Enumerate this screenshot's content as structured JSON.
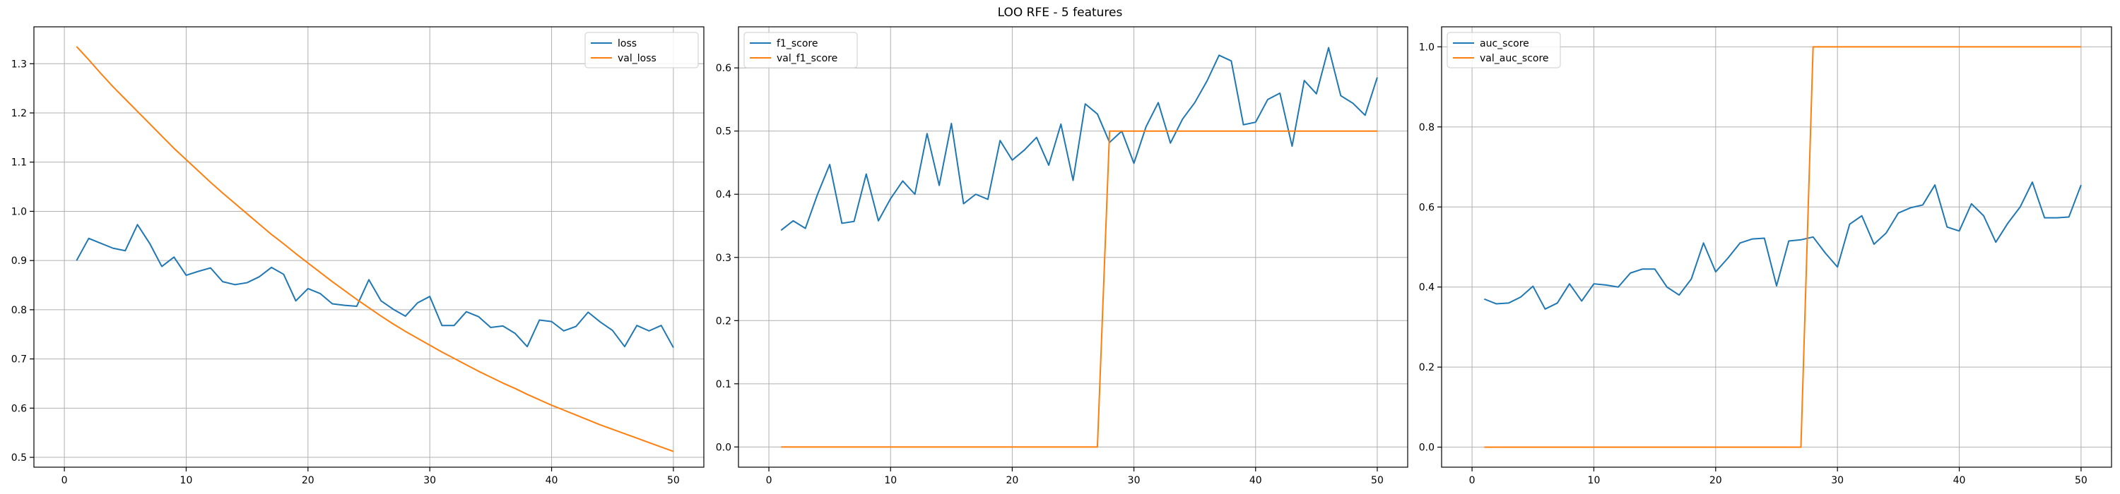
{
  "figure": {
    "title": "LOO RFE - 5 features"
  },
  "colors": {
    "blue": "#1f77b4",
    "orange": "#ff7f0e",
    "grid": "#b0b0b0",
    "axis": "#000000"
  },
  "chart_data": [
    {
      "type": "line",
      "title": "",
      "xlabel": "",
      "ylabel": "",
      "xlim": [
        -2.5,
        52.5
      ],
      "ylim": [
        0.48,
        1.375
      ],
      "xticks": [
        0,
        10,
        20,
        30,
        40,
        50
      ],
      "yticks": [
        0.5,
        0.6,
        0.7,
        0.8,
        0.9,
        1.0,
        1.1,
        1.2,
        1.3
      ],
      "ytick_labels": [
        "0.5",
        "0.6",
        "0.7",
        "0.8",
        "0.9",
        "1.0",
        "1.1",
        "1.2",
        "1.3"
      ],
      "grid": true,
      "legend_position": "top-right",
      "x": [
        1,
        2,
        3,
        4,
        5,
        6,
        7,
        8,
        9,
        10,
        11,
        12,
        13,
        14,
        15,
        16,
        17,
        18,
        19,
        20,
        21,
        22,
        23,
        24,
        25,
        26,
        27,
        28,
        29,
        30,
        31,
        32,
        33,
        34,
        35,
        36,
        37,
        38,
        39,
        40,
        41,
        42,
        43,
        44,
        45,
        46,
        47,
        48,
        49,
        50
      ],
      "series": [
        {
          "name": "loss",
          "color": "#1f77b4",
          "values": [
            0.9,
            0.945,
            0.935,
            0.925,
            0.92,
            0.973,
            0.935,
            0.888,
            0.907,
            0.87,
            0.878,
            0.885,
            0.857,
            0.851,
            0.855,
            0.867,
            0.886,
            0.872,
            0.818,
            0.843,
            0.833,
            0.812,
            0.809,
            0.807,
            0.861,
            0.818,
            0.801,
            0.787,
            0.814,
            0.827,
            0.768,
            0.768,
            0.796,
            0.786,
            0.764,
            0.767,
            0.752,
            0.725,
            0.779,
            0.776,
            0.757,
            0.766,
            0.795,
            0.775,
            0.758,
            0.725,
            0.768,
            0.757,
            0.768,
            0.723
          ]
        },
        {
          "name": "val_loss",
          "color": "#ff7f0e",
          "values": [
            1.335,
            1.308,
            1.28,
            1.253,
            1.228,
            1.203,
            1.178,
            1.153,
            1.128,
            1.105,
            1.082,
            1.059,
            1.037,
            1.016,
            0.995,
            0.974,
            0.953,
            0.934,
            0.914,
            0.895,
            0.876,
            0.857,
            0.839,
            0.821,
            0.804,
            0.787,
            0.771,
            0.756,
            0.742,
            0.728,
            0.714,
            0.701,
            0.688,
            0.675,
            0.663,
            0.651,
            0.64,
            0.628,
            0.617,
            0.606,
            0.596,
            0.586,
            0.576,
            0.566,
            0.557,
            0.548,
            0.539,
            0.53,
            0.521,
            0.512
          ]
        }
      ]
    },
    {
      "type": "line",
      "title": "",
      "xlabel": "",
      "ylabel": "",
      "xlim": [
        -2.5,
        52.5
      ],
      "ylim": [
        -0.032,
        0.665
      ],
      "xticks": [
        0,
        10,
        20,
        30,
        40,
        50
      ],
      "yticks": [
        0.0,
        0.1,
        0.2,
        0.3,
        0.4,
        0.5,
        0.6
      ],
      "ytick_labels": [
        "0.0",
        "0.1",
        "0.2",
        "0.3",
        "0.4",
        "0.5",
        "0.6"
      ],
      "grid": true,
      "legend_position": "top-left",
      "x": [
        1,
        2,
        3,
        4,
        5,
        6,
        7,
        8,
        9,
        10,
        11,
        12,
        13,
        14,
        15,
        16,
        17,
        18,
        19,
        20,
        21,
        22,
        23,
        24,
        25,
        26,
        27,
        28,
        29,
        30,
        31,
        32,
        33,
        34,
        35,
        36,
        37,
        38,
        39,
        40,
        41,
        42,
        43,
        44,
        45,
        46,
        47,
        48,
        49,
        50
      ],
      "series": [
        {
          "name": "f1_score",
          "color": "#1f77b4",
          "values": [
            0.343,
            0.358,
            0.346,
            0.4,
            0.447,
            0.354,
            0.357,
            0.432,
            0.358,
            0.393,
            0.421,
            0.4,
            0.496,
            0.414,
            0.512,
            0.385,
            0.4,
            0.392,
            0.485,
            0.454,
            0.47,
            0.49,
            0.446,
            0.511,
            0.422,
            0.543,
            0.527,
            0.482,
            0.5,
            0.449,
            0.507,
            0.545,
            0.481,
            0.519,
            0.545,
            0.579,
            0.62,
            0.611,
            0.51,
            0.514,
            0.55,
            0.56,
            0.476,
            0.58,
            0.559,
            0.632,
            0.556,
            0.544,
            0.525,
            0.585
          ]
        },
        {
          "name": "val_f1_score",
          "color": "#ff7f0e",
          "values": [
            0,
            0,
            0,
            0,
            0,
            0,
            0,
            0,
            0,
            0,
            0,
            0,
            0,
            0,
            0,
            0,
            0,
            0,
            0,
            0,
            0,
            0,
            0,
            0,
            0,
            0,
            0,
            0.5,
            0.5,
            0.5,
            0.5,
            0.5,
            0.5,
            0.5,
            0.5,
            0.5,
            0.5,
            0.5,
            0.5,
            0.5,
            0.5,
            0.5,
            0.5,
            0.5,
            0.5,
            0.5,
            0.5,
            0.5,
            0.5,
            0.5
          ]
        }
      ]
    },
    {
      "type": "line",
      "title": "",
      "xlabel": "",
      "ylabel": "",
      "xlim": [
        -2.5,
        52.5
      ],
      "ylim": [
        -0.05,
        1.05
      ],
      "xticks": [
        0,
        10,
        20,
        30,
        40,
        50
      ],
      "yticks": [
        0.0,
        0.2,
        0.4,
        0.6,
        0.8,
        1.0
      ],
      "ytick_labels": [
        "0.0",
        "0.2",
        "0.4",
        "0.6",
        "0.8",
        "1.0"
      ],
      "grid": true,
      "legend_position": "top-left",
      "x": [
        1,
        2,
        3,
        4,
        5,
        6,
        7,
        8,
        9,
        10,
        11,
        12,
        13,
        14,
        15,
        16,
        17,
        18,
        19,
        20,
        21,
        22,
        23,
        24,
        25,
        26,
        27,
        28,
        29,
        30,
        31,
        32,
        33,
        34,
        35,
        36,
        37,
        38,
        39,
        40,
        41,
        42,
        43,
        44,
        45,
        46,
        47,
        48,
        49,
        50
      ],
      "series": [
        {
          "name": "auc_score",
          "color": "#1f77b4",
          "values": [
            0.37,
            0.358,
            0.36,
            0.375,
            0.402,
            0.345,
            0.36,
            0.408,
            0.365,
            0.408,
            0.405,
            0.4,
            0.435,
            0.445,
            0.445,
            0.4,
            0.38,
            0.42,
            0.51,
            0.438,
            0.472,
            0.51,
            0.52,
            0.522,
            0.403,
            0.515,
            0.518,
            0.525,
            0.485,
            0.45,
            0.557,
            0.578,
            0.507,
            0.535,
            0.585,
            0.598,
            0.605,
            0.655,
            0.55,
            0.54,
            0.608,
            0.578,
            0.512,
            0.56,
            0.6,
            0.662,
            0.573,
            0.573,
            0.575,
            0.655
          ]
        },
        {
          "name": "val_auc_score",
          "color": "#ff7f0e",
          "values": [
            0,
            0,
            0,
            0,
            0,
            0,
            0,
            0,
            0,
            0,
            0,
            0,
            0,
            0,
            0,
            0,
            0,
            0,
            0,
            0,
            0,
            0,
            0,
            0,
            0,
            0,
            0,
            1,
            1,
            1,
            1,
            1,
            1,
            1,
            1,
            1,
            1,
            1,
            1,
            1,
            1,
            1,
            1,
            1,
            1,
            1,
            1,
            1,
            1,
            1
          ]
        }
      ]
    }
  ]
}
